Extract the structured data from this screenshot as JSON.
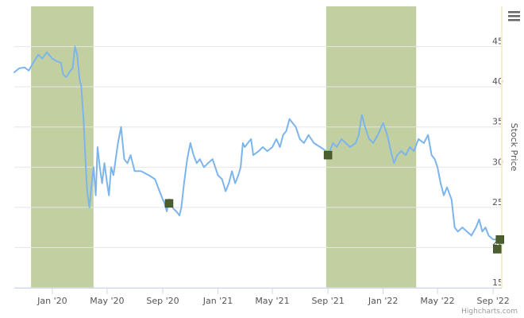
{
  "chart_data": {
    "type": "line",
    "title": "",
    "xlabel": "",
    "ylabel": "Stock Price",
    "xlim": [
      "2019-10-09",
      "2022-09-20"
    ],
    "ylim": [
      15,
      50
    ],
    "grid": true,
    "x_tick_labels": [
      {
        "date": "2020-01-01",
        "label": "Jan '20"
      },
      {
        "date": "2020-05-01",
        "label": "May '20"
      },
      {
        "date": "2020-09-01",
        "label": "Sep '20"
      },
      {
        "date": "2021-01-01",
        "label": "Jan '21"
      },
      {
        "date": "2021-05-01",
        "label": "May '21"
      },
      {
        "date": "2021-09-01",
        "label": "Sep '21"
      },
      {
        "date": "2022-01-01",
        "label": "Jan '22"
      },
      {
        "date": "2022-05-01",
        "label": "May '22"
      },
      {
        "date": "2022-09-01",
        "label": "Sep '22"
      }
    ],
    "y_tick_labels": [
      "15",
      "20",
      "25",
      "30",
      "35",
      "40",
      "45"
    ],
    "y_ticks": [
      15,
      20,
      25,
      30,
      35,
      40,
      45
    ],
    "shaded_bands": [
      {
        "from": "2019-11-15",
        "to": "2020-04-01",
        "color": "#c2cfa1"
      },
      {
        "from": "2021-08-28",
        "to": "2022-03-15",
        "color": "#c2cfa1"
      }
    ],
    "series": [
      {
        "color": "#7cb5ec",
        "points": [
          [
            "2019-10-09",
            41.8
          ],
          [
            "2019-10-20",
            42.3
          ],
          [
            "2019-11-01",
            42.4
          ],
          [
            "2019-11-10",
            42.0
          ],
          [
            "2019-11-20",
            43.0
          ],
          [
            "2019-12-01",
            44.0
          ],
          [
            "2019-12-10",
            43.5
          ],
          [
            "2019-12-20",
            44.3
          ],
          [
            "2020-01-01",
            43.5
          ],
          [
            "2020-01-10",
            43.2
          ],
          [
            "2020-01-20",
            43.0
          ],
          [
            "2020-01-25",
            41.5
          ],
          [
            "2020-02-01",
            41.2
          ],
          [
            "2020-02-10",
            42.0
          ],
          [
            "2020-02-15",
            42.3
          ],
          [
            "2020-02-20",
            45.0
          ],
          [
            "2020-02-25",
            44.0
          ],
          [
            "2020-03-01",
            41.0
          ],
          [
            "2020-03-05",
            40.0
          ],
          [
            "2020-03-10",
            36.0
          ],
          [
            "2020-03-15",
            30.0
          ],
          [
            "2020-03-18",
            27.0
          ],
          [
            "2020-03-23",
            25.0
          ],
          [
            "2020-03-28",
            28.0
          ],
          [
            "2020-04-01",
            30.0
          ],
          [
            "2020-04-06",
            26.5
          ],
          [
            "2020-04-10",
            32.5
          ],
          [
            "2020-04-15",
            30.0
          ],
          [
            "2020-04-20",
            28.0
          ],
          [
            "2020-04-25",
            30.5
          ],
          [
            "2020-05-01",
            28.0
          ],
          [
            "2020-05-05",
            26.5
          ],
          [
            "2020-05-10",
            30.0
          ],
          [
            "2020-05-15",
            29.0
          ],
          [
            "2020-05-20",
            31.0
          ],
          [
            "2020-05-25",
            33.0
          ],
          [
            "2020-06-01",
            35.0
          ],
          [
            "2020-06-08",
            31.0
          ],
          [
            "2020-06-15",
            30.5
          ],
          [
            "2020-06-22",
            31.5
          ],
          [
            "2020-07-01",
            29.5
          ],
          [
            "2020-07-15",
            29.5
          ],
          [
            "2020-08-01",
            29.0
          ],
          [
            "2020-08-15",
            28.5
          ],
          [
            "2020-08-25",
            27.0
          ],
          [
            "2020-09-01",
            26.0
          ],
          [
            "2020-09-05",
            25.5
          ],
          [
            "2020-09-10",
            24.5
          ],
          [
            "2020-09-15",
            26.0
          ],
          [
            "2020-09-20",
            25.3
          ],
          [
            "2020-09-25",
            24.8
          ],
          [
            "2020-10-01",
            24.5
          ],
          [
            "2020-10-08",
            24.0
          ],
          [
            "2020-10-12",
            25.0
          ],
          [
            "2020-10-18",
            28.0
          ],
          [
            "2020-10-25",
            31.0
          ],
          [
            "2020-11-01",
            33.0
          ],
          [
            "2020-11-08",
            31.5
          ],
          [
            "2020-11-15",
            30.5
          ],
          [
            "2020-11-22",
            31.0
          ],
          [
            "2020-12-01",
            30.0
          ],
          [
            "2020-12-10",
            30.5
          ],
          [
            "2020-12-20",
            31.0
          ],
          [
            "2021-01-01",
            29.0
          ],
          [
            "2021-01-10",
            28.5
          ],
          [
            "2021-01-18",
            27.0
          ],
          [
            "2021-01-25",
            28.0
          ],
          [
            "2021-02-01",
            29.5
          ],
          [
            "2021-02-08",
            28.0
          ],
          [
            "2021-02-15",
            29.0
          ],
          [
            "2021-02-20",
            30.0
          ],
          [
            "2021-02-25",
            33.0
          ],
          [
            "2021-03-01",
            32.5
          ],
          [
            "2021-03-08",
            33.0
          ],
          [
            "2021-03-15",
            33.5
          ],
          [
            "2021-03-20",
            31.5
          ],
          [
            "2021-04-01",
            32.0
          ],
          [
            "2021-04-10",
            32.5
          ],
          [
            "2021-04-20",
            32.0
          ],
          [
            "2021-05-01",
            32.5
          ],
          [
            "2021-05-10",
            33.5
          ],
          [
            "2021-05-18",
            32.5
          ],
          [
            "2021-05-25",
            34.0
          ],
          [
            "2021-06-01",
            34.5
          ],
          [
            "2021-06-08",
            36.0
          ],
          [
            "2021-06-15",
            35.5
          ],
          [
            "2021-06-22",
            35.0
          ],
          [
            "2021-07-01",
            33.5
          ],
          [
            "2021-07-10",
            33.0
          ],
          [
            "2021-07-20",
            34.0
          ],
          [
            "2021-08-01",
            33.0
          ],
          [
            "2021-08-15",
            32.5
          ],
          [
            "2021-08-28",
            32.0
          ],
          [
            "2021-09-05",
            32.0
          ],
          [
            "2021-09-12",
            33.0
          ],
          [
            "2021-09-20",
            32.5
          ],
          [
            "2021-10-01",
            33.5
          ],
          [
            "2021-10-10",
            33.0
          ],
          [
            "2021-10-20",
            32.5
          ],
          [
            "2021-11-01",
            33.0
          ],
          [
            "2021-11-08",
            34.0
          ],
          [
            "2021-11-15",
            36.5
          ],
          [
            "2021-11-22",
            35.0
          ],
          [
            "2021-12-01",
            33.5
          ],
          [
            "2021-12-10",
            33.0
          ],
          [
            "2021-12-20",
            34.0
          ],
          [
            "2022-01-01",
            35.5
          ],
          [
            "2022-01-10",
            34.0
          ],
          [
            "2022-01-18",
            32.0
          ],
          [
            "2022-01-25",
            30.5
          ],
          [
            "2022-02-01",
            31.5
          ],
          [
            "2022-02-10",
            32.0
          ],
          [
            "2022-02-20",
            31.5
          ],
          [
            "2022-03-01",
            32.5
          ],
          [
            "2022-03-10",
            32.0
          ],
          [
            "2022-03-20",
            33.5
          ],
          [
            "2022-04-01",
            33.0
          ],
          [
            "2022-04-10",
            34.0
          ],
          [
            "2022-04-18",
            31.5
          ],
          [
            "2022-04-25",
            31.0
          ],
          [
            "2022-05-01",
            30.0
          ],
          [
            "2022-05-08",
            28.0
          ],
          [
            "2022-05-15",
            26.5
          ],
          [
            "2022-05-22",
            27.5
          ],
          [
            "2022-06-01",
            26.0
          ],
          [
            "2022-06-08",
            22.5
          ],
          [
            "2022-06-15",
            22.0
          ],
          [
            "2022-06-25",
            22.5
          ],
          [
            "2022-07-05",
            22.0
          ],
          [
            "2022-07-15",
            21.5
          ],
          [
            "2022-07-25",
            22.5
          ],
          [
            "2022-08-01",
            23.5
          ],
          [
            "2022-08-08",
            22.0
          ],
          [
            "2022-08-15",
            22.5
          ],
          [
            "2022-08-22",
            21.5
          ],
          [
            "2022-09-01",
            21.0
          ],
          [
            "2022-09-10",
            21.0
          ],
          [
            "2022-09-20",
            20.5
          ]
        ]
      }
    ],
    "markers": [
      {
        "date": "2020-09-15",
        "value": 25.5,
        "color": "#4b5e2d"
      },
      {
        "date": "2021-09-01",
        "value": 31.5,
        "color": "#4b5e2d"
      },
      {
        "date": "2022-09-10",
        "value": 19.8,
        "color": "#4b5e2d"
      },
      {
        "date": "2022-09-16",
        "value": 21.0,
        "color": "#4b5e2d"
      }
    ]
  },
  "credits": "Highcharts.com",
  "menu_icon": "hamburger-menu-icon"
}
